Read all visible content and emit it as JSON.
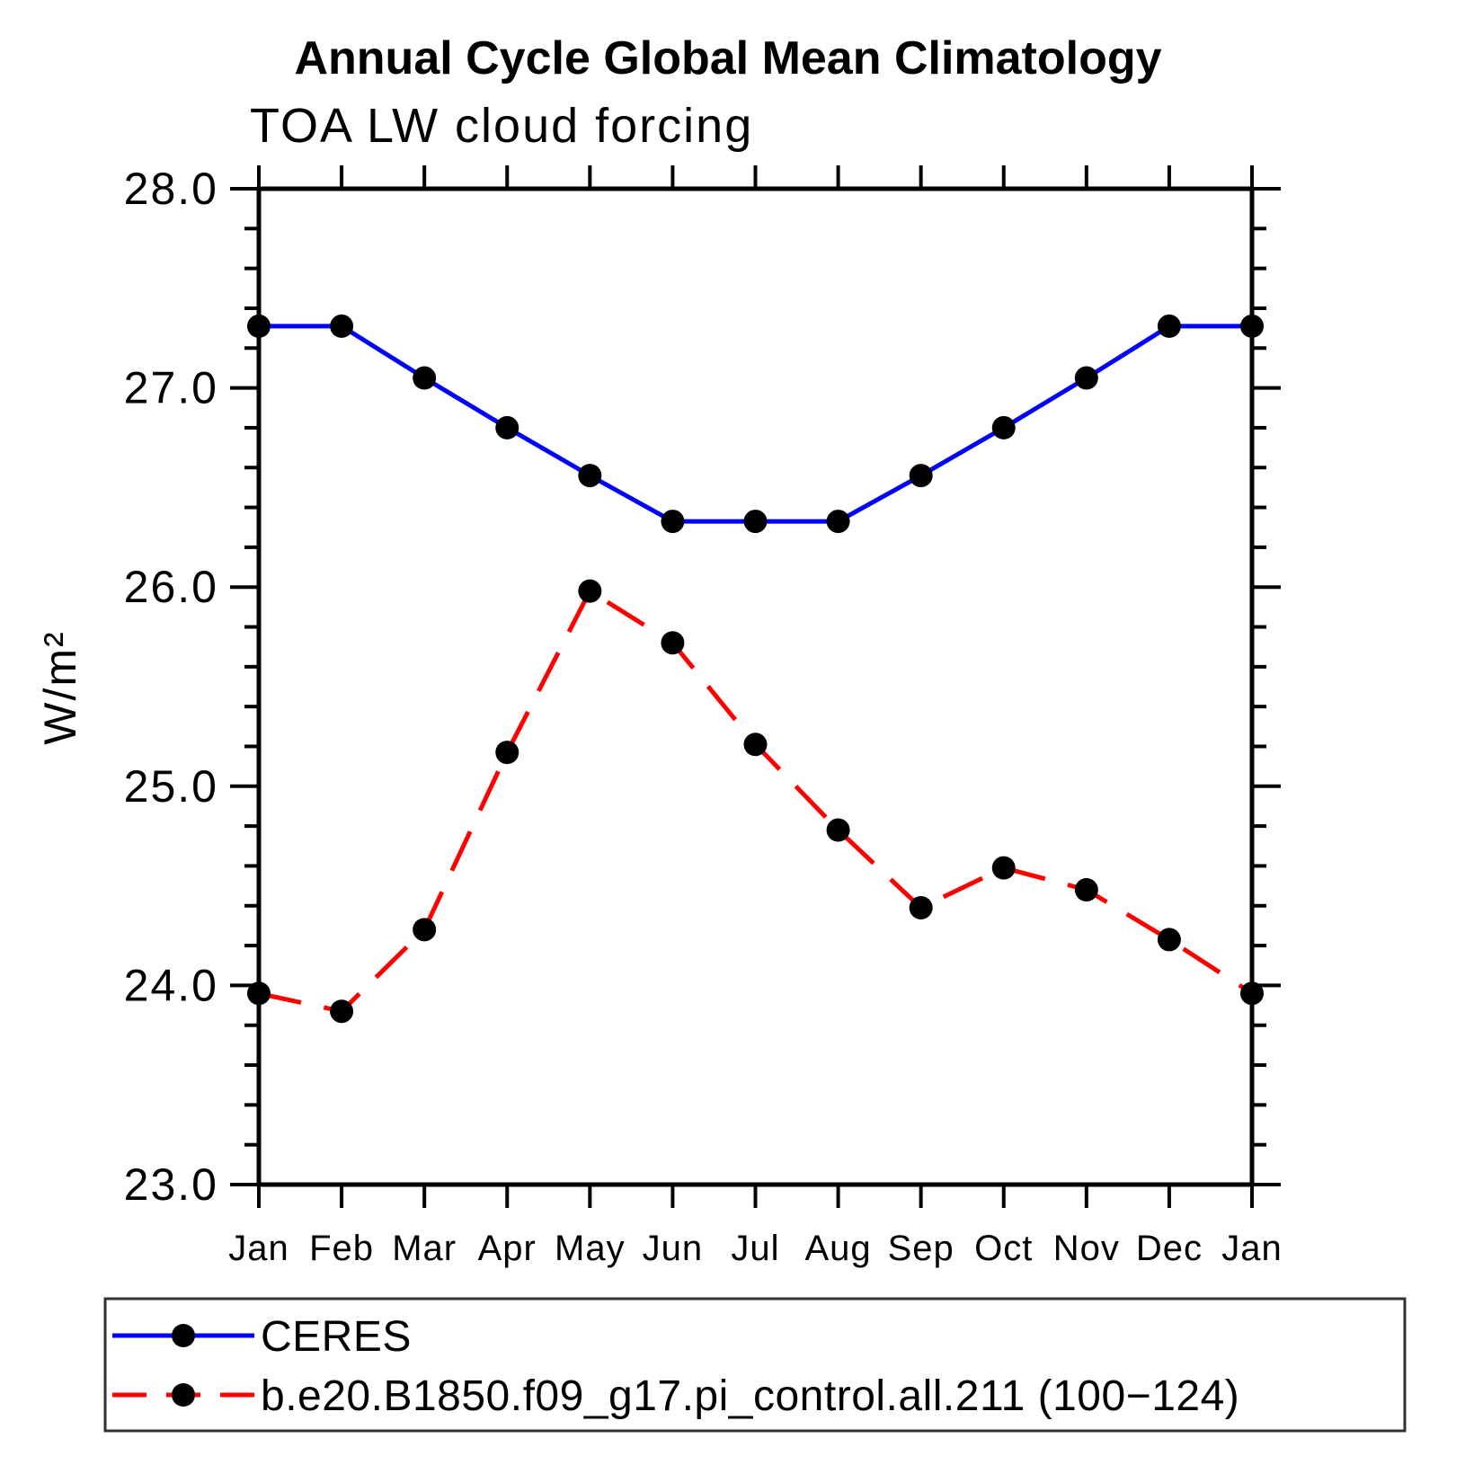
{
  "header": {
    "title": "Annual Cycle Global Mean Climatology",
    "subtitle": "TOA LW cloud forcing"
  },
  "axes": {
    "y": {
      "label": "W/m²",
      "min": 23.0,
      "max": 28.0,
      "major_step": 1.0,
      "minor_step": 0.2,
      "tick_labels": [
        "28.0",
        "27.0",
        "26.0",
        "25.0",
        "24.0",
        "23.0"
      ]
    },
    "x": {
      "labels": [
        "Jan",
        "Feb",
        "Mar",
        "Apr",
        "May",
        "Jun",
        "Jul",
        "Aug",
        "Sep",
        "Oct",
        "Nov",
        "Dec",
        "Jan"
      ]
    }
  },
  "legend": {
    "position": "bottom",
    "items": [
      {
        "label": "CERES",
        "color": "#0000ff",
        "style": "solid",
        "marker": "filled-circle"
      },
      {
        "label": "b.e20.B1850.f09_g17.pi_control.all.211 (100−124)",
        "color": "#ff0000",
        "style": "dashed",
        "marker": "filled-circle"
      }
    ]
  },
  "colors": {
    "ceres_line": "#0000ff",
    "model_line": "#ff0000",
    "marker": "#000000",
    "axis": "#000000"
  },
  "chart_data": {
    "type": "line",
    "title": "Annual Cycle Global Mean Climatology",
    "subtitle": "TOA LW cloud forcing",
    "ylabel": "W/m²",
    "ylim": [
      23.0,
      28.0
    ],
    "y_major_step": 1.0,
    "y_minor_step": 0.2,
    "grid": false,
    "legend_position": "bottom",
    "categories": [
      "Jan",
      "Feb",
      "Mar",
      "Apr",
      "May",
      "Jun",
      "Jul",
      "Aug",
      "Sep",
      "Oct",
      "Nov",
      "Dec",
      "Jan"
    ],
    "series": [
      {
        "name": "CERES",
        "color": "#0000ff",
        "line_style": "solid",
        "marker": "circle",
        "values": [
          27.31,
          27.31,
          27.05,
          26.8,
          26.56,
          26.33,
          26.33,
          26.33,
          26.56,
          26.8,
          27.05,
          27.31,
          27.31
        ]
      },
      {
        "name": "b.e20.B1850.f09_g17.pi_control.all.211 (100−124)",
        "color": "#ff0000",
        "line_style": "dashed",
        "marker": "circle",
        "values": [
          23.96,
          23.87,
          24.28,
          25.17,
          25.98,
          25.72,
          25.21,
          24.78,
          24.39,
          24.59,
          24.48,
          24.23,
          23.96
        ]
      }
    ]
  }
}
